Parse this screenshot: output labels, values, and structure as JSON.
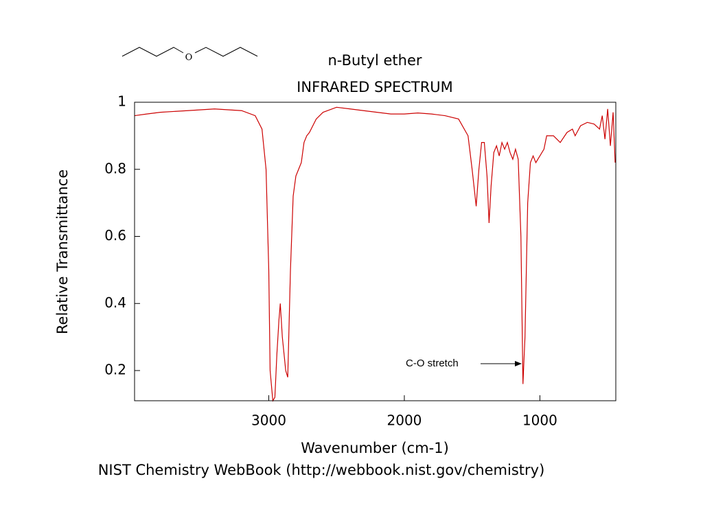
{
  "chart_data": {
    "type": "line",
    "title": "n-Butyl ether",
    "subtitle": "INFRARED SPECTRUM",
    "molecule_atom": "O",
    "x_label": "Wavenumber (cm-1)",
    "y_label": "Relative Transmittance",
    "annotation": "C-O stretch",
    "source": "NIST Chemistry WebBook (http://webbook.nist.gov/chemistry)",
    "xlim": [
      3990,
      440
    ],
    "ylim": [
      0.11,
      1.0
    ],
    "xticks": [
      3000,
      2000,
      1000
    ],
    "yticks": [
      0.2,
      0.4,
      0.6,
      0.8,
      1
    ],
    "series": [
      {
        "name": "n-Butyl ether",
        "color": "#cc0000",
        "x": [
          3990,
          3900,
          3800,
          3600,
          3400,
          3200,
          3100,
          3050,
          3020,
          3000,
          2990,
          2970,
          2955,
          2940,
          2925,
          2915,
          2900,
          2875,
          2860,
          2840,
          2820,
          2800,
          2780,
          2760,
          2740,
          2720,
          2700,
          2650,
          2600,
          2500,
          2400,
          2300,
          2100,
          2000,
          1900,
          1800,
          1700,
          1600,
          1530,
          1500,
          1470,
          1450,
          1430,
          1410,
          1390,
          1375,
          1360,
          1340,
          1320,
          1300,
          1280,
          1260,
          1240,
          1220,
          1200,
          1180,
          1160,
          1140,
          1125,
          1110,
          1090,
          1070,
          1050,
          1030,
          1000,
          970,
          950,
          900,
          850,
          800,
          760,
          740,
          700,
          650,
          600,
          560,
          540,
          520,
          500,
          480,
          460,
          445
        ],
        "values": [
          0.96,
          0.965,
          0.97,
          0.975,
          0.98,
          0.975,
          0.96,
          0.92,
          0.8,
          0.5,
          0.2,
          0.11,
          0.12,
          0.25,
          0.35,
          0.4,
          0.3,
          0.2,
          0.18,
          0.5,
          0.72,
          0.78,
          0.8,
          0.82,
          0.88,
          0.9,
          0.91,
          0.95,
          0.97,
          0.985,
          0.98,
          0.975,
          0.965,
          0.965,
          0.968,
          0.965,
          0.96,
          0.95,
          0.9,
          0.8,
          0.69,
          0.8,
          0.88,
          0.88,
          0.78,
          0.64,
          0.75,
          0.85,
          0.87,
          0.84,
          0.88,
          0.86,
          0.88,
          0.85,
          0.83,
          0.86,
          0.83,
          0.6,
          0.16,
          0.3,
          0.7,
          0.82,
          0.84,
          0.82,
          0.84,
          0.86,
          0.9,
          0.9,
          0.88,
          0.91,
          0.92,
          0.9,
          0.93,
          0.94,
          0.935,
          0.92,
          0.96,
          0.89,
          0.98,
          0.87,
          0.97,
          0.82
        ]
      }
    ]
  }
}
